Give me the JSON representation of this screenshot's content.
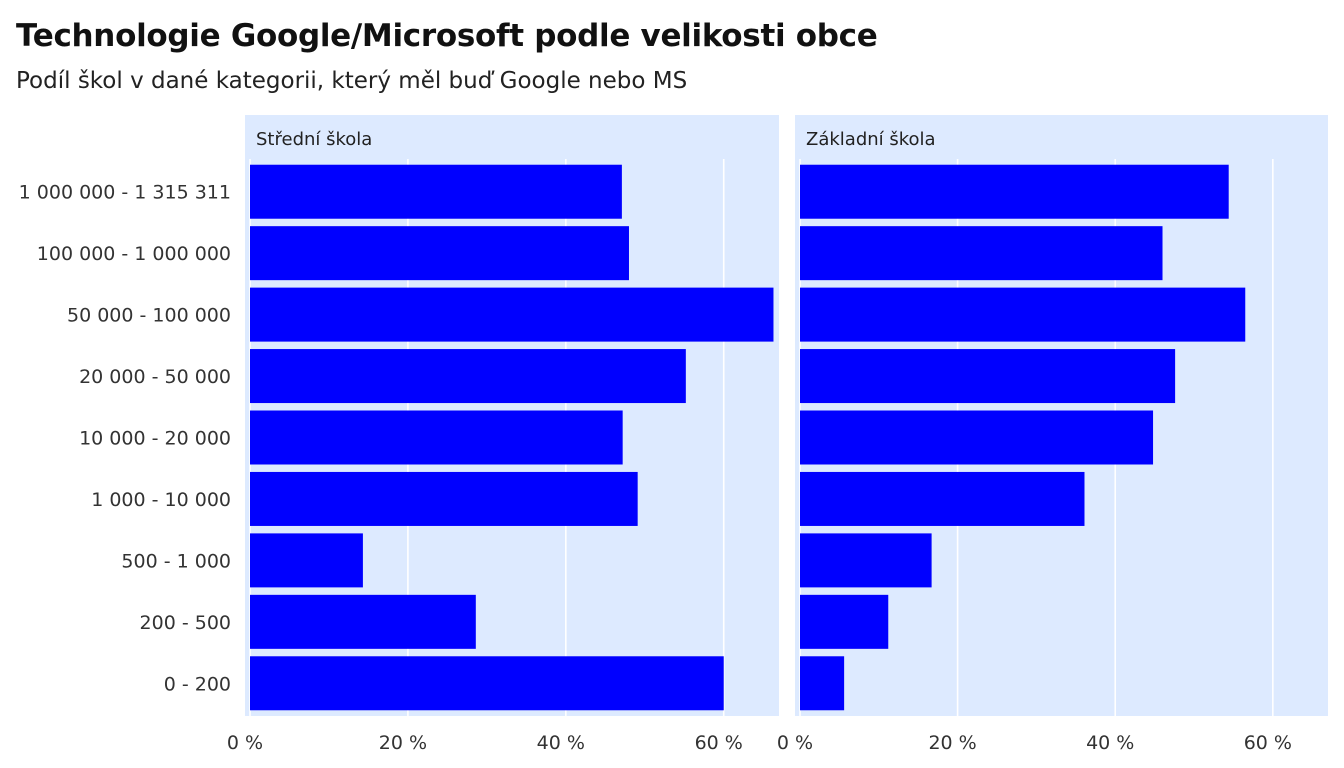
{
  "title": "Technologie Google/Microsoft podle velikosti obce",
  "subtitle": "Podíl škol v dané kategorii, který měl buď Google nebo MS",
  "colors": {
    "bar": "#0000ff",
    "panel_background": "#ddeaff",
    "grid": "#ffffff"
  },
  "chart_data": {
    "type": "bar",
    "orientation": "horizontal",
    "categories": [
      "1 000 000 - 1 315 311",
      "100 000 - 1 000 000",
      "50 000 - 100 000",
      "20 000 - 50 000",
      "10 000 - 20 000",
      "1 000 - 10 000",
      "500 - 1 000",
      "200 - 500",
      "0 - 200"
    ],
    "xlim": [
      0,
      67
    ],
    "x_ticks": [
      0,
      20,
      40,
      60
    ],
    "x_tick_labels": [
      "0 %",
      "20 %",
      "40 %",
      "60 %"
    ],
    "grid": true,
    "facets": [
      {
        "label": "Střední škola",
        "values": [
          47.1,
          48.0,
          66.3,
          55.2,
          47.2,
          49.1,
          14.3,
          28.6,
          60.0
        ]
      },
      {
        "label": "Základní škola",
        "values": [
          54.4,
          46.0,
          56.5,
          47.6,
          44.8,
          36.1,
          16.7,
          11.2,
          5.6
        ]
      }
    ]
  }
}
